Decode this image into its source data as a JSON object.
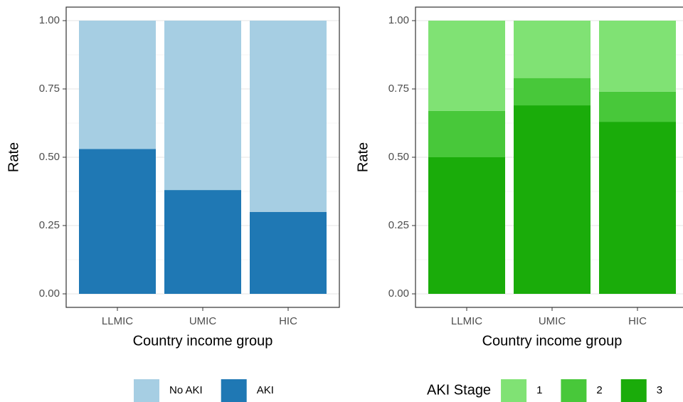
{
  "chart_data": [
    {
      "type": "bar",
      "stacked": true,
      "x_label": "Country income group",
      "y_label": "Rate",
      "categories": [
        "LLMIC",
        "UMIC",
        "HIC"
      ],
      "series": [
        {
          "name": "AKI",
          "color": "#1f78b4",
          "values": [
            0.53,
            0.38,
            0.3
          ]
        },
        {
          "name": "No AKI",
          "color": "#a6cee3",
          "values": [
            0.47,
            0.62,
            0.7
          ]
        }
      ],
      "legend_order": [
        1,
        0
      ],
      "ylim": [
        0,
        1
      ],
      "yticks": [
        {
          "value": 0,
          "label": "0.00"
        },
        {
          "value": 0.25,
          "label": "0.25"
        },
        {
          "value": 0.5,
          "label": "0.50"
        },
        {
          "value": 0.75,
          "label": "0.75"
        },
        {
          "value": 1,
          "label": "1.00"
        }
      ],
      "grid": true,
      "legend_position": "bottom"
    },
    {
      "type": "bar",
      "stacked": true,
      "x_label": "Country income group",
      "y_label": "Rate",
      "legend_title": "AKI Stage",
      "categories": [
        "LLMIC",
        "UMIC",
        "HIC"
      ],
      "series": [
        {
          "name": "3",
          "color": "#1aac0a",
          "values": [
            0.5,
            0.69,
            0.63
          ]
        },
        {
          "name": "2",
          "color": "#48c83a",
          "values": [
            0.17,
            0.1,
            0.11
          ]
        },
        {
          "name": "1",
          "color": "#80e274",
          "values": [
            0.33,
            0.21,
            0.26
          ]
        }
      ],
      "legend_order": [
        2,
        1,
        0
      ],
      "ylim": [
        0,
        1
      ],
      "yticks": [
        {
          "value": 0,
          "label": "0.00"
        },
        {
          "value": 0.25,
          "label": "0.25"
        },
        {
          "value": 0.5,
          "label": "0.50"
        },
        {
          "value": 0.75,
          "label": "0.75"
        },
        {
          "value": 1,
          "label": "1.00"
        }
      ],
      "grid": true,
      "legend_position": "bottom"
    }
  ]
}
